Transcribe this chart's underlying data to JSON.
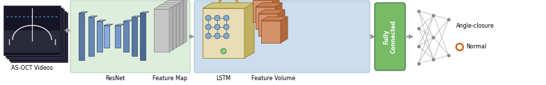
{
  "fig_width": 7.84,
  "fig_height": 1.23,
  "dpi": 100,
  "bg_color": "#ffffff",
  "resnet_bg": "#ddeedd",
  "lstm_bg": "#ccdded",
  "fc_color": "#77bb66",
  "arrow_color": "#999999",
  "oct_frame_color": "#151525",
  "oct_edge_color": "#444455",
  "cnn_colors": [
    "#5575a0",
    "#6688b8",
    "#7799cc",
    "#88aadd",
    "#99bbee"
  ],
  "fm_color": "#b8b8b8",
  "lstm_face": "#e8ddb5",
  "lstm_top": "#d0c880",
  "lstm_side": "#c0b060",
  "lstm_edge": "#a09030",
  "node_blue": "#88aacc",
  "node_green": "#88cc88",
  "fv_face": "#d4936a",
  "fv_top": "#c88050",
  "fv_side": "#b06838",
  "fv_edge": "#905030",
  "label_as_oct": "AS-OCT Videos",
  "label_resnet": "ResNet",
  "label_feature_map": "Feature Map",
  "label_lstm": "LSTM",
  "label_feature_volume": "Feature Volume",
  "label_fc": "Fully\nConnected",
  "label_angle_closure": "Angle-closure",
  "label_normal": "Normal",
  "font_size": 5.8
}
